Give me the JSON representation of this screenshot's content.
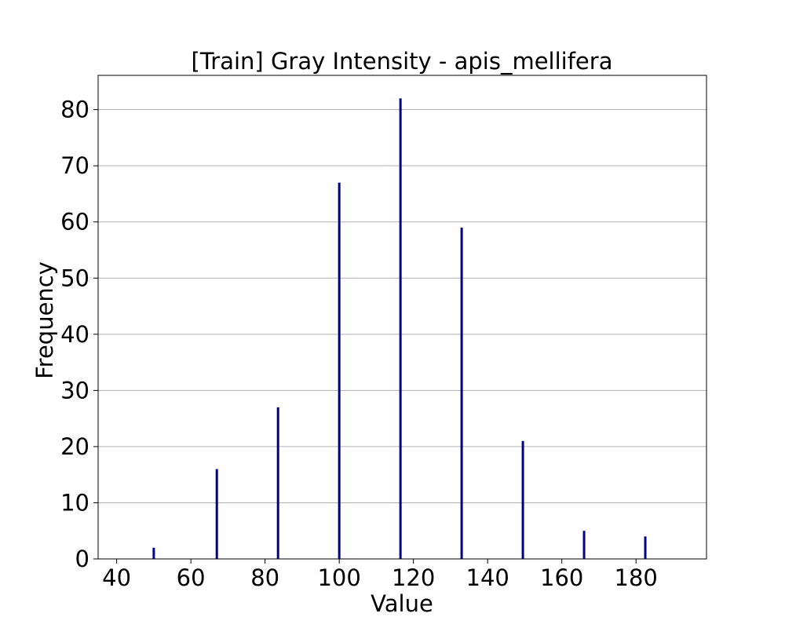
{
  "chart_data": {
    "type": "bar",
    "title": "[Train] Gray Intensity - apis_mellifera",
    "xlabel": "Value",
    "ylabel": "Frequency",
    "xlim": [
      35,
      199
    ],
    "ylim": [
      0,
      86.1
    ],
    "xticks": [
      40,
      60,
      80,
      100,
      120,
      140,
      160,
      180
    ],
    "yticks": [
      0,
      10,
      20,
      30,
      40,
      50,
      60,
      70,
      80
    ],
    "grid": "y-axis only",
    "bar_color": "#00008b",
    "bars": [
      {
        "x": 50,
        "value": 2
      },
      {
        "x": 67,
        "value": 16
      },
      {
        "x": 83.5,
        "value": 27
      },
      {
        "x": 100,
        "value": 67
      },
      {
        "x": 116.5,
        "value": 82
      },
      {
        "x": 133,
        "value": 59
      },
      {
        "x": 149.5,
        "value": 21
      },
      {
        "x": 166,
        "value": 5
      },
      {
        "x": 182.5,
        "value": 4
      }
    ]
  }
}
